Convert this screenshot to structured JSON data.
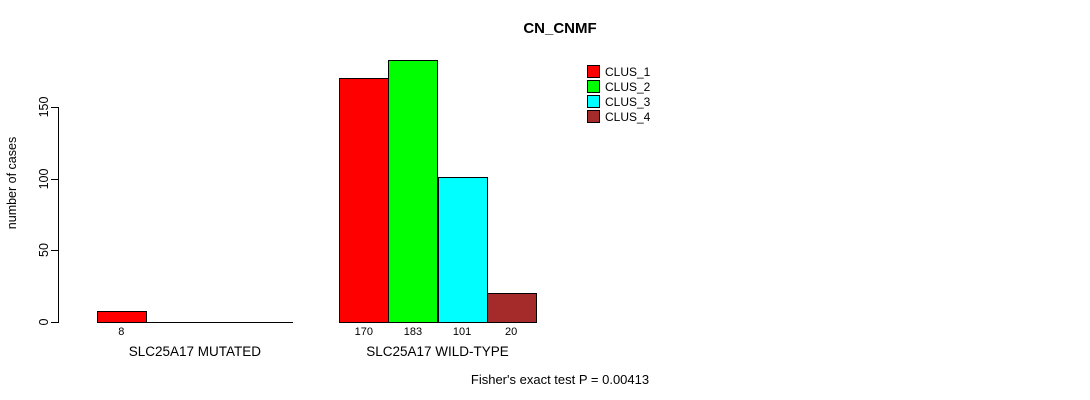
{
  "chart_data": {
    "type": "bar",
    "title": "CN_CNMF",
    "xlabel": "",
    "ylabel": "number of cases",
    "ylim": [
      0,
      150
    ],
    "yticks": [
      0,
      50,
      100,
      150
    ],
    "categories": [
      "SLC25A17 MUTATED",
      "SLC25A17 WILD-TYPE"
    ],
    "series": [
      {
        "name": "CLUS_1",
        "color": "#ff0000",
        "values": [
          8,
          170
        ]
      },
      {
        "name": "CLUS_2",
        "color": "#00ff00",
        "values": [
          0,
          183
        ]
      },
      {
        "name": "CLUS_3",
        "color": "#00ffff",
        "values": [
          0,
          101
        ]
      },
      {
        "name": "CLUS_4",
        "color": "#a52a2a",
        "values": [
          0,
          20
        ]
      }
    ],
    "legend_position": "top-right",
    "grid": "off",
    "annotation": "Fisher's exact test P = 0.00413"
  }
}
